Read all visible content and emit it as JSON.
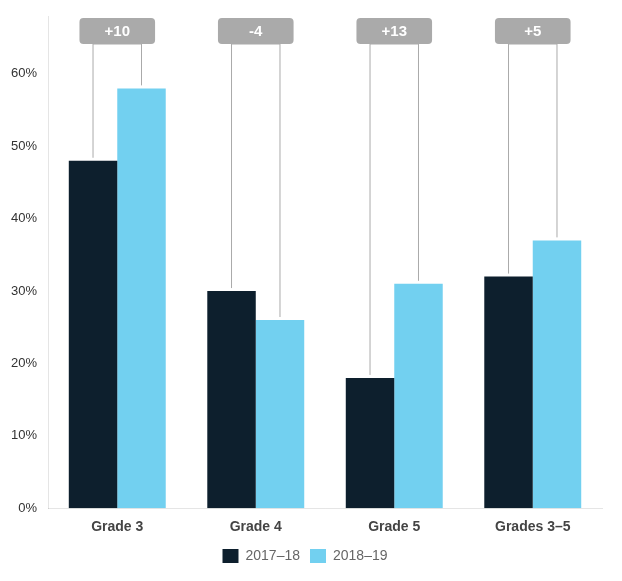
{
  "chart_data": {
    "type": "bar",
    "categories": [
      "Grade 3",
      "Grade 4",
      "Grade 5",
      "Grades 3–5"
    ],
    "series": [
      {
        "name": "2017–18",
        "color": "#0d1f2d",
        "values": [
          0.48,
          0.3,
          0.18,
          0.32
        ]
      },
      {
        "name": "2018–19",
        "color": "#72d0f0",
        "values": [
          0.58,
          0.26,
          0.31,
          0.37
        ]
      }
    ],
    "ylim": [
      0,
      0.68
    ],
    "yticks": [
      {
        "value": 0,
        "label": "0%"
      },
      {
        "value": 0.1,
        "label": "10%"
      },
      {
        "value": 0.2,
        "label": "20%"
      },
      {
        "value": 0.3,
        "label": "30%"
      },
      {
        "value": 0.4,
        "label": "40%"
      },
      {
        "value": 0.5,
        "label": "50%"
      },
      {
        "value": 0.6,
        "label": "60%"
      }
    ],
    "grid": false,
    "legend": "bottom",
    "annotations": [
      "+10",
      "-4",
      "+13",
      "+5"
    ]
  }
}
